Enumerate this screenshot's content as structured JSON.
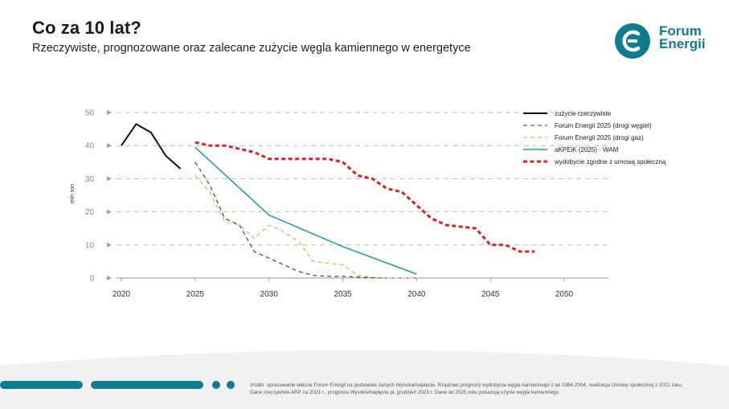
{
  "header": {
    "title": "Co za 10 lat?",
    "subtitle": "Rzeczywiste, prognozowane oraz zalecane zużycie węgla kamiennego w energetyce"
  },
  "logo": {
    "line1": "Forum",
    "line2": "Energii",
    "icon": "forum-energii-logo-icon",
    "color": "#0f7d8f"
  },
  "footer": {
    "source_line1": "źródło: opracowanie własne Forum Energii na podstawie danych WysokieNapięcie. Rządowe prognozy wydobycia węgla kamiennego z lat 1984-2004, realizacja Umowy społecznej z 2021 roku.",
    "source_line2": "Dane rzeczywiste ARP za 2023 r., prognoza WysokieNapięcie.pl, grudzień 2023 r. Dane od 2025 roku pokazują użycie węgla kamiennego.",
    "accent_color": "#0f7d8f"
  },
  "chart_data": {
    "type": "line",
    "title": "Co za 10 lat?",
    "ylabel": "mln ton",
    "xlabel": "",
    "xlim": [
      2020,
      2053
    ],
    "ylim": [
      0,
      50
    ],
    "xticks": [
      2020,
      2025,
      2030,
      2035,
      2040,
      2045,
      2050
    ],
    "yticks": [
      0,
      10,
      20,
      30,
      40,
      50
    ],
    "grid": "horizontal dashed",
    "legend_position": "top-right",
    "series": [
      {
        "name": "zużycie rzeczywiste",
        "color": "#111111",
        "style": "solid",
        "x": [
          2020,
          2021,
          2022,
          2023,
          2024
        ],
        "y": [
          40,
          46.5,
          44,
          37,
          33
        ]
      },
      {
        "name": "Forum Energii 2025 (drogi węgiel)",
        "color": "#333333",
        "style": "dashed",
        "x": [
          2025,
          2026,
          2027,
          2028,
          2029,
          2030,
          2031,
          2032,
          2033,
          2034,
          2035,
          2036,
          2037,
          2038,
          2039,
          2040
        ],
        "y": [
          35,
          28,
          18,
          16,
          8,
          6,
          4,
          2,
          0.8,
          0.5,
          0.5,
          0.3,
          0.1,
          0,
          0,
          0
        ]
      },
      {
        "name": "Forum Energii 2025 (drogi gaz)",
        "color": "#f0a04b",
        "style": "dashed",
        "x": [
          2025,
          2026,
          2027,
          2028,
          2029,
          2030,
          2031,
          2032,
          2033,
          2034,
          2035,
          2036,
          2037,
          2038,
          2039,
          2040
        ],
        "y": [
          31,
          26,
          17,
          16,
          12,
          16,
          14,
          11,
          5,
          4.5,
          4,
          0.8,
          0.3,
          0,
          0,
          0
        ]
      },
      {
        "name": "aKPEiK (2025) - WAM",
        "color": "#2a9aa8",
        "style": "solid",
        "x": [
          2025,
          2030,
          2035,
          2040
        ],
        "y": [
          39.5,
          19,
          9.5,
          1.2
        ]
      },
      {
        "name": "wydobycie zgodne z umową społeczną",
        "color": "#e02020",
        "style": "dashed-thick",
        "x": [
          2025,
          2026,
          2027,
          2028,
          2029,
          2030,
          2031,
          2032,
          2033,
          2034,
          2035,
          2036,
          2037,
          2038,
          2039,
          2040,
          2041,
          2042,
          2043,
          2044,
          2045,
          2046,
          2047,
          2048
        ],
        "y": [
          41,
          40,
          40,
          39,
          38,
          36,
          36,
          36,
          36,
          36,
          35,
          31,
          30,
          27,
          26,
          22,
          18,
          16,
          15.5,
          15,
          10,
          10,
          8,
          8
        ]
      }
    ]
  }
}
